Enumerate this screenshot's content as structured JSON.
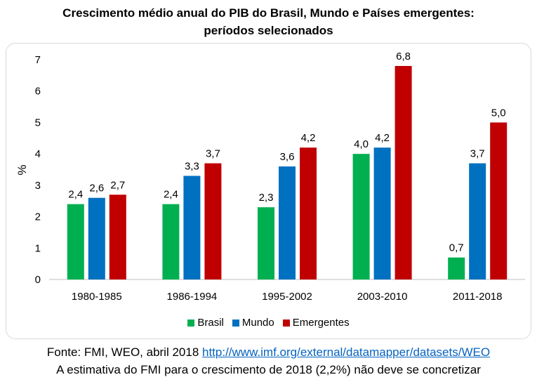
{
  "title_line1": "Crescimento médio anual do PIB do Brasil, Mundo e Países emergentes:",
  "title_line2": "períodos selecionados",
  "source_prefix": "Fonte: FMI, WEO, abril 2018 ",
  "source_url": "http://www.imf.org/external/datamapper/datasets/WEO",
  "note": "A estimativa do FMI para o crescimento de 2018 (2,2%) não deve se concretizar",
  "colors": {
    "Brasil": "#00b050",
    "Mundo": "#0070c0",
    "Emergentes": "#c00000",
    "axis": "#bfbfbf"
  },
  "chart_data": {
    "type": "bar",
    "categories": [
      "1980-1985",
      "1986-1994",
      "1995-2002",
      "2003-2010",
      "2011-2018"
    ],
    "series": [
      {
        "name": "Brasil",
        "values": [
          2.4,
          2.4,
          2.3,
          4.0,
          0.7
        ],
        "labels": [
          "2,4",
          "2,4",
          "2,3",
          "4,0",
          "0,7"
        ]
      },
      {
        "name": "Mundo",
        "values": [
          2.6,
          3.3,
          3.6,
          4.2,
          3.7
        ],
        "labels": [
          "2,6",
          "3,3",
          "3,6",
          "4,2",
          "3,7"
        ]
      },
      {
        "name": "Emergentes",
        "values": [
          2.7,
          3.7,
          4.2,
          6.8,
          5.0
        ],
        "labels": [
          "2,7",
          "3,7",
          "4,2",
          "6,8",
          "5,0"
        ]
      }
    ],
    "ylabel": "%",
    "ylim": [
      0,
      7
    ],
    "yticks": [
      "0",
      "1",
      "2",
      "3",
      "4",
      "5",
      "6",
      "7"
    ],
    "grid": false,
    "legend": "bottom"
  }
}
